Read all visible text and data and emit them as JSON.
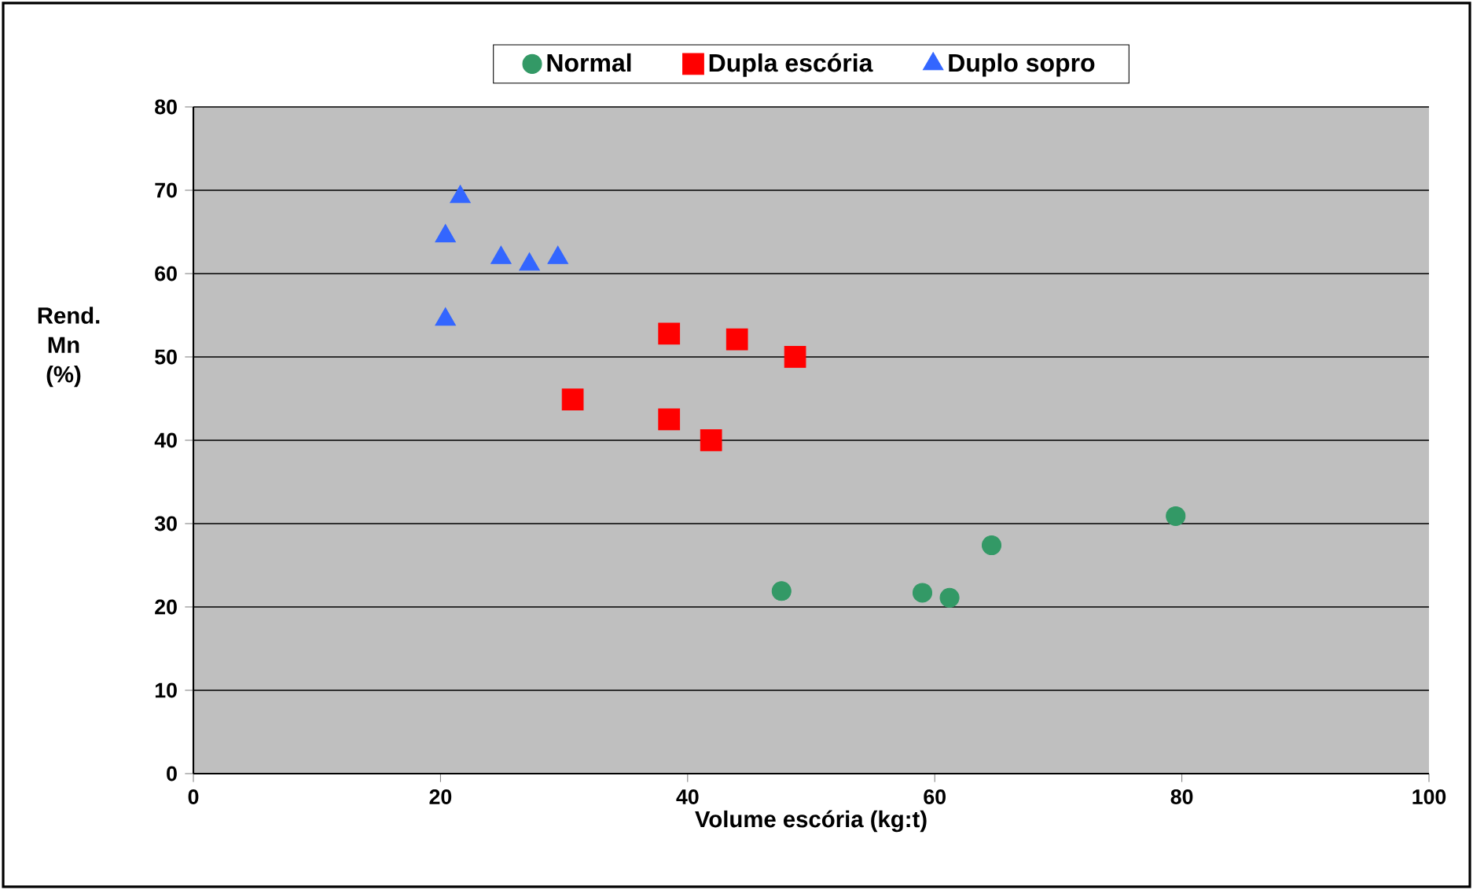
{
  "chart_data": {
    "type": "scatter",
    "xlabel": "Volume escória (kg:t)",
    "ylabel": "Rend. Mn (%)",
    "xlim": [
      0,
      100
    ],
    "ylim": [
      0,
      80
    ],
    "xticks": [
      0,
      20,
      40,
      60,
      80,
      100
    ],
    "yticks": [
      0,
      10,
      20,
      30,
      40,
      50,
      60,
      70,
      80
    ],
    "grid": "y",
    "legend": "top",
    "series": [
      {
        "name": "Normal",
        "color": "#339966",
        "marker": "circle",
        "x": [
          47.6,
          59.0,
          61.2,
          64.6,
          79.5
        ],
        "values": [
          21.9,
          21.7,
          21.1,
          27.4,
          30.9
        ]
      },
      {
        "name": "Dupla escória",
        "color": "#ff0000",
        "marker": "square",
        "x": [
          30.7,
          38.5,
          38.5,
          41.9,
          44.0,
          48.7
        ],
        "values": [
          44.9,
          42.5,
          52.8,
          40.0,
          52.1,
          50.0
        ]
      },
      {
        "name": "Duplo sopro",
        "color": "#3366ff",
        "marker": "triangle",
        "x": [
          20.4,
          21.6,
          20.4,
          24.9,
          27.2,
          29.5
        ],
        "values": [
          64.5,
          69.2,
          54.5,
          61.9,
          61.1,
          61.9
        ]
      }
    ]
  }
}
